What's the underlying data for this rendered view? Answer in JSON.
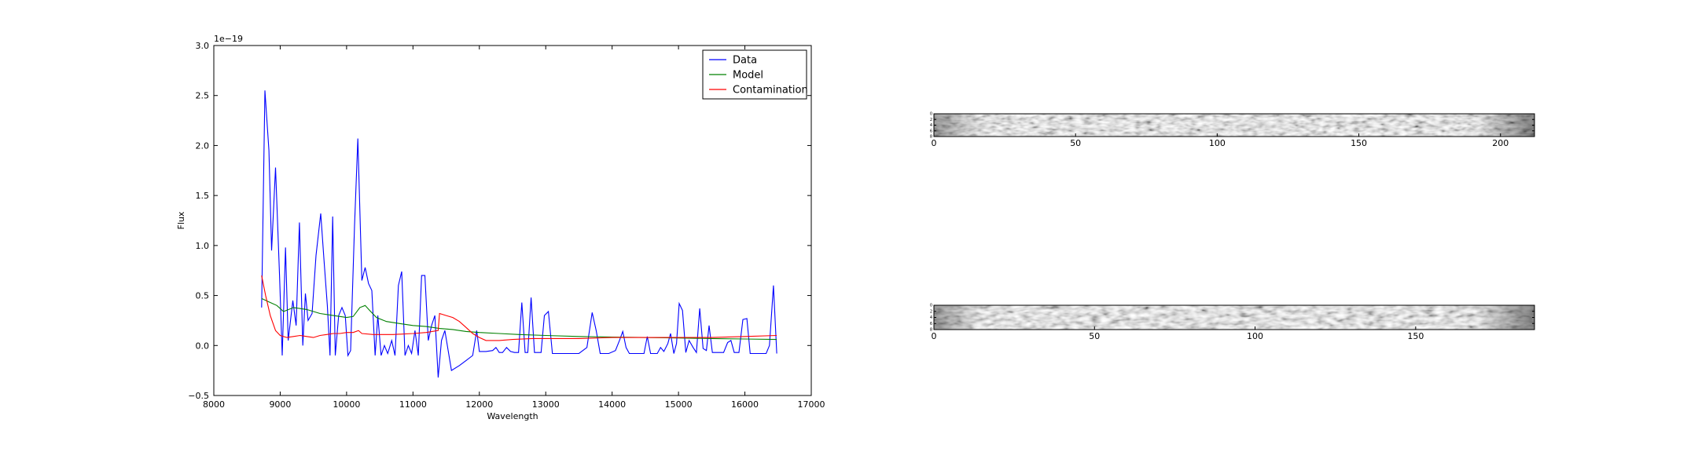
{
  "chart_data": [
    {
      "type": "line",
      "title": "",
      "xlabel": "Wavelength",
      "ylabel": "Flux",
      "y_offset_label": "1e−19",
      "xlim": [
        8000,
        17000
      ],
      "ylim": [
        -0.5,
        3.0
      ],
      "xticks": [
        8000,
        9000,
        10000,
        11000,
        12000,
        13000,
        14000,
        15000,
        16000,
        17000
      ],
      "yticks": [
        -0.5,
        0.0,
        0.5,
        1.0,
        1.5,
        2.0,
        2.5,
        3.0
      ],
      "ytick_labels": [
        "−0.5",
        "0.0",
        "0.5",
        "1.0",
        "1.5",
        "2.0",
        "2.5",
        "3.0"
      ],
      "grid": false,
      "legend_position": "top-right",
      "series": [
        {
          "name": "Data",
          "color": "#0000ff",
          "points": [
            [
              8720,
              0.38
            ],
            [
              8770,
              2.55
            ],
            [
              8830,
              1.95
            ],
            [
              8870,
              0.95
            ],
            [
              8930,
              1.78
            ],
            [
              8990,
              0.7
            ],
            [
              9030,
              -0.1
            ],
            [
              9080,
              0.98
            ],
            [
              9120,
              0.05
            ],
            [
              9190,
              0.45
            ],
            [
              9240,
              0.2
            ],
            [
              9290,
              1.23
            ],
            [
              9340,
              0.0
            ],
            [
              9380,
              0.52
            ],
            [
              9420,
              0.25
            ],
            [
              9480,
              0.32
            ],
            [
              9540,
              0.9
            ],
            [
              9610,
              1.32
            ],
            [
              9660,
              0.85
            ],
            [
              9710,
              0.4
            ],
            [
              9750,
              -0.1
            ],
            [
              9790,
              1.29
            ],
            [
              9830,
              -0.1
            ],
            [
              9880,
              0.3
            ],
            [
              9930,
              0.38
            ],
            [
              9980,
              0.3
            ],
            [
              10020,
              -0.1
            ],
            [
              10060,
              -0.05
            ],
            [
              10120,
              1.2
            ],
            [
              10170,
              2.07
            ],
            [
              10230,
              0.65
            ],
            [
              10280,
              0.78
            ],
            [
              10330,
              0.62
            ],
            [
              10380,
              0.55
            ],
            [
              10430,
              -0.1
            ],
            [
              10470,
              0.3
            ],
            [
              10520,
              -0.1
            ],
            [
              10570,
              0.0
            ],
            [
              10620,
              -0.08
            ],
            [
              10680,
              0.05
            ],
            [
              10730,
              -0.1
            ],
            [
              10780,
              0.6
            ],
            [
              10830,
              0.74
            ],
            [
              10880,
              -0.1
            ],
            [
              10930,
              0.0
            ],
            [
              10980,
              -0.08
            ],
            [
              11030,
              0.15
            ],
            [
              11080,
              -0.1
            ],
            [
              11130,
              0.7
            ],
            [
              11180,
              0.7
            ],
            [
              11230,
              0.05
            ],
            [
              11280,
              0.2
            ],
            [
              11330,
              0.3
            ],
            [
              11380,
              -0.32
            ],
            [
              11430,
              0.05
            ],
            [
              11480,
              0.15
            ],
            [
              11530,
              -0.05
            ],
            [
              11580,
              -0.25
            ],
            [
              11700,
              -0.2
            ],
            [
              11800,
              -0.15
            ],
            [
              11900,
              -0.1
            ],
            [
              11960,
              0.15
            ],
            [
              12000,
              -0.06
            ],
            [
              12100,
              -0.06
            ],
            [
              12200,
              -0.05
            ],
            [
              12250,
              -0.02
            ],
            [
              12300,
              -0.07
            ],
            [
              12350,
              -0.07
            ],
            [
              12410,
              -0.02
            ],
            [
              12470,
              -0.06
            ],
            [
              12530,
              -0.07
            ],
            [
              12590,
              -0.07
            ],
            [
              12640,
              0.43
            ],
            [
              12690,
              -0.07
            ],
            [
              12730,
              -0.07
            ],
            [
              12780,
              0.48
            ],
            [
              12830,
              -0.07
            ],
            [
              12880,
              -0.07
            ],
            [
              12930,
              -0.07
            ],
            [
              12980,
              0.3
            ],
            [
              13040,
              0.34
            ],
            [
              13100,
              -0.08
            ],
            [
              13300,
              -0.08
            ],
            [
              13500,
              -0.08
            ],
            [
              13620,
              -0.02
            ],
            [
              13700,
              0.33
            ],
            [
              13760,
              0.15
            ],
            [
              13820,
              -0.08
            ],
            [
              13950,
              -0.08
            ],
            [
              14050,
              -0.05
            ],
            [
              14110,
              0.05
            ],
            [
              14160,
              0.14
            ],
            [
              14210,
              -0.02
            ],
            [
              14260,
              -0.08
            ],
            [
              14400,
              -0.08
            ],
            [
              14480,
              -0.08
            ],
            [
              14530,
              0.09
            ],
            [
              14580,
              -0.08
            ],
            [
              14680,
              -0.08
            ],
            [
              14730,
              -0.02
            ],
            [
              14780,
              -0.06
            ],
            [
              14840,
              0.02
            ],
            [
              14880,
              0.12
            ],
            [
              14930,
              -0.08
            ],
            [
              14970,
              0.02
            ],
            [
              15010,
              0.42
            ],
            [
              15060,
              0.35
            ],
            [
              15110,
              -0.07
            ],
            [
              15160,
              0.05
            ],
            [
              15220,
              -0.02
            ],
            [
              15270,
              -0.07
            ],
            [
              15320,
              0.37
            ],
            [
              15370,
              -0.03
            ],
            [
              15420,
              -0.05
            ],
            [
              15460,
              0.2
            ],
            [
              15510,
              -0.07
            ],
            [
              15620,
              -0.07
            ],
            [
              15680,
              -0.07
            ],
            [
              15740,
              0.03
            ],
            [
              15790,
              0.05
            ],
            [
              15840,
              -0.07
            ],
            [
              15910,
              -0.07
            ],
            [
              15970,
              0.26
            ],
            [
              16030,
              0.27
            ],
            [
              16080,
              -0.08
            ],
            [
              16250,
              -0.08
            ],
            [
              16320,
              -0.08
            ],
            [
              16370,
              0.0
            ],
            [
              16430,
              0.6
            ],
            [
              16480,
              -0.08
            ]
          ]
        },
        {
          "name": "Model",
          "color": "#008000",
          "points": [
            [
              8720,
              0.47
            ],
            [
              8850,
              0.43
            ],
            [
              8950,
              0.4
            ],
            [
              9050,
              0.34
            ],
            [
              9200,
              0.38
            ],
            [
              9400,
              0.36
            ],
            [
              9600,
              0.32
            ],
            [
              9800,
              0.3
            ],
            [
              10000,
              0.28
            ],
            [
              10100,
              0.29
            ],
            [
              10200,
              0.38
            ],
            [
              10280,
              0.4
            ],
            [
              10350,
              0.35
            ],
            [
              10450,
              0.28
            ],
            [
              10600,
              0.24
            ],
            [
              10800,
              0.22
            ],
            [
              11000,
              0.2
            ],
            [
              11200,
              0.19
            ],
            [
              11400,
              0.17
            ],
            [
              11600,
              0.16
            ],
            [
              11800,
              0.14
            ],
            [
              12000,
              0.13
            ],
            [
              12300,
              0.12
            ],
            [
              12600,
              0.11
            ],
            [
              13000,
              0.1
            ],
            [
              13500,
              0.09
            ],
            [
              14000,
              0.085
            ],
            [
              14500,
              0.08
            ],
            [
              15000,
              0.075
            ],
            [
              15500,
              0.07
            ],
            [
              16000,
              0.065
            ],
            [
              16480,
              0.06
            ]
          ]
        },
        {
          "name": "Contamination",
          "color": "#ff0000",
          "points": [
            [
              8720,
              0.7
            ],
            [
              8780,
              0.5
            ],
            [
              8850,
              0.3
            ],
            [
              8930,
              0.15
            ],
            [
              9000,
              0.1
            ],
            [
              9100,
              0.08
            ],
            [
              9200,
              0.09
            ],
            [
              9300,
              0.1
            ],
            [
              9400,
              0.09
            ],
            [
              9500,
              0.08
            ],
            [
              9600,
              0.1
            ],
            [
              9700,
              0.11
            ],
            [
              9800,
              0.12
            ],
            [
              9900,
              0.12
            ],
            [
              10000,
              0.13
            ],
            [
              10100,
              0.13
            ],
            [
              10180,
              0.15
            ],
            [
              10230,
              0.12
            ],
            [
              10400,
              0.11
            ],
            [
              10700,
              0.11
            ],
            [
              11000,
              0.12
            ],
            [
              11200,
              0.13
            ],
            [
              11380,
              0.15
            ],
            [
              11400,
              0.32
            ],
            [
              11500,
              0.3
            ],
            [
              11600,
              0.28
            ],
            [
              11700,
              0.24
            ],
            [
              11800,
              0.18
            ],
            [
              11900,
              0.12
            ],
            [
              12000,
              0.08
            ],
            [
              12100,
              0.05
            ],
            [
              12300,
              0.05
            ],
            [
              12500,
              0.06
            ],
            [
              12800,
              0.07
            ],
            [
              13000,
              0.07
            ],
            [
              13500,
              0.07
            ],
            [
              14000,
              0.08
            ],
            [
              14500,
              0.08
            ],
            [
              15000,
              0.08
            ],
            [
              15500,
              0.08
            ],
            [
              16000,
              0.09
            ],
            [
              16480,
              0.1
            ]
          ]
        }
      ]
    },
    {
      "type": "heatmap",
      "title": "",
      "colormap": "gray",
      "xticks": [
        0,
        50,
        100,
        150,
        200
      ],
      "xlim": [
        0,
        212
      ],
      "yticks": [
        0,
        2,
        4,
        6,
        8
      ],
      "ylim": [
        0,
        8
      ]
    },
    {
      "type": "heatmap",
      "title": "",
      "colormap": "gray",
      "xticks": [
        0,
        50,
        100,
        150
      ],
      "xlim": [
        0,
        187
      ],
      "yticks": [
        0,
        2,
        4,
        6,
        8
      ],
      "ylim": [
        0,
        8
      ]
    }
  ]
}
